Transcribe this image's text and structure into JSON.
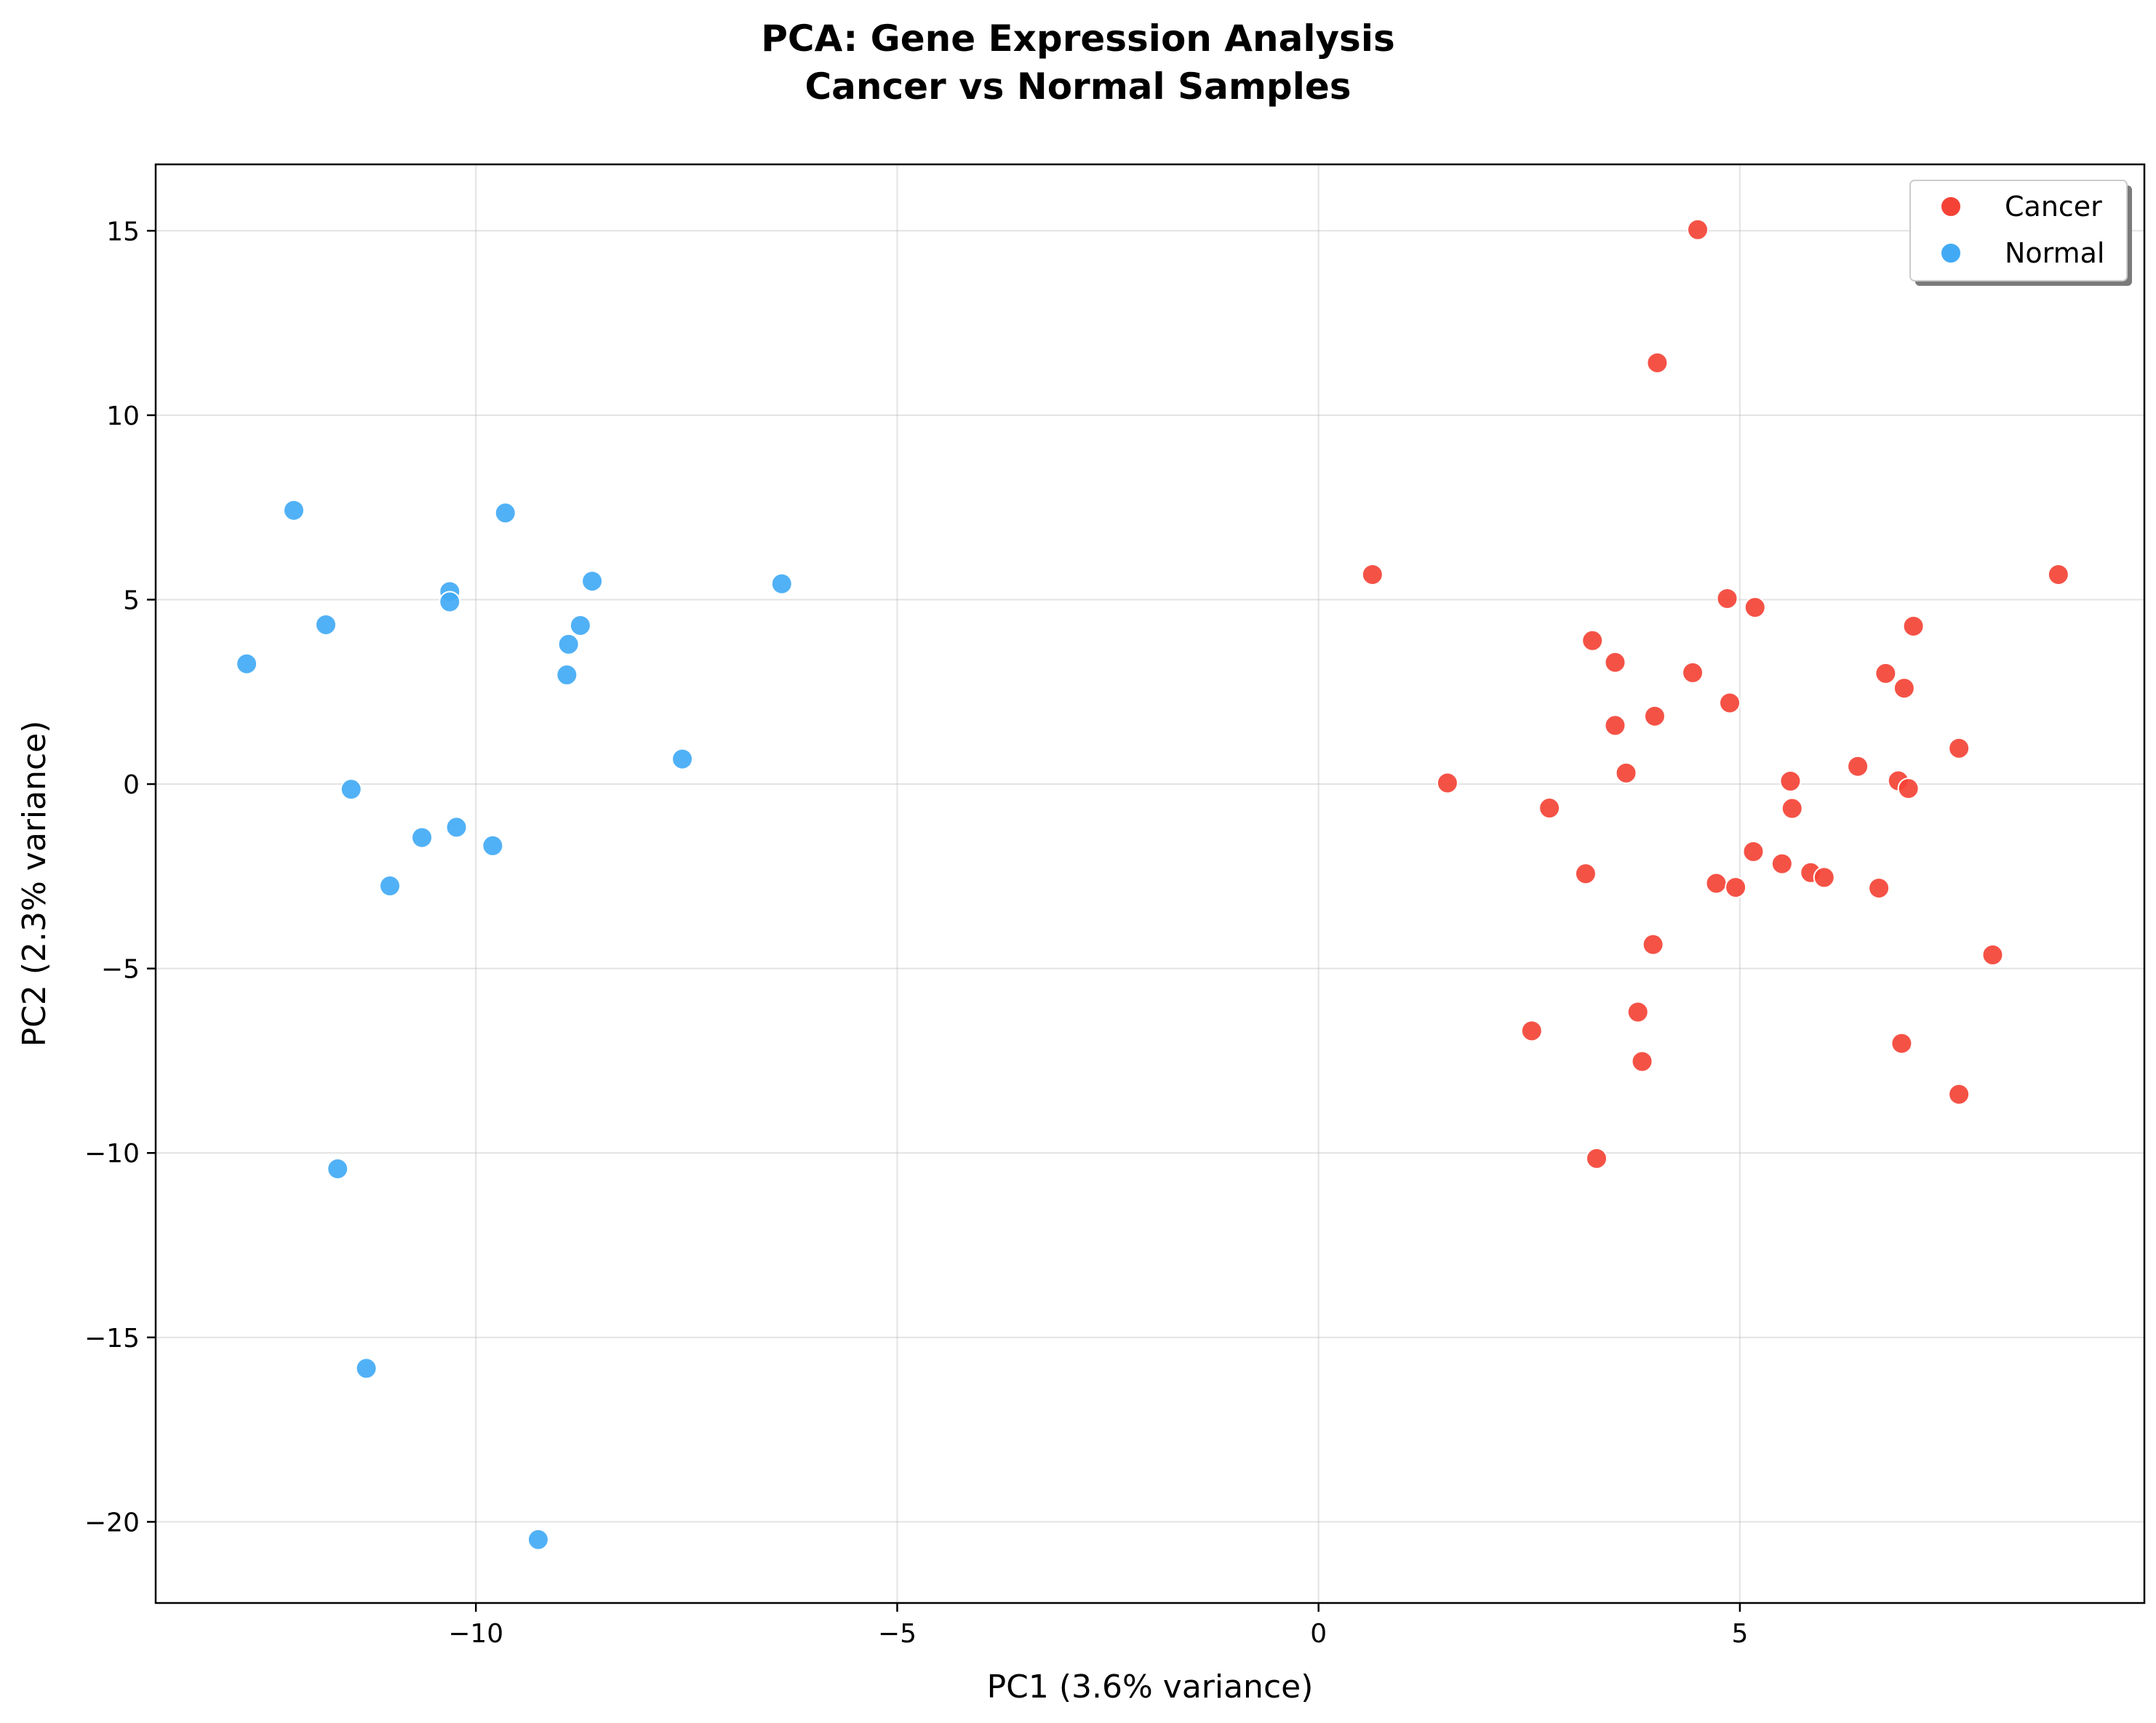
{
  "chart_data": {
    "type": "scatter",
    "title": "PCA: Gene Expression Analysis\nCancer vs Normal Samples",
    "xlabel": "PC1 (3.6% variance)",
    "ylabel": "PC2 (2.3% variance)",
    "xlim": [
      -13.8,
      9.8
    ],
    "ylim": [
      -22.2,
      16.8
    ],
    "xticks": [
      -10,
      -5,
      0,
      5
    ],
    "xtick_labels": [
      "−10",
      "−5",
      "0",
      "5"
    ],
    "yticks": [
      15,
      10,
      5,
      0,
      -5,
      -10,
      -15,
      -20
    ],
    "ytick_labels": [
      "15",
      "10",
      "5",
      "0",
      "−5",
      "−10",
      "−15",
      "−20"
    ],
    "grid": true,
    "legend_position": "top-right",
    "series": [
      {
        "name": "Cancer",
        "color": "#f44336",
        "x": [
          4.5,
          4.02,
          0.64,
          8.78,
          4.85,
          5.18,
          3.25,
          7.06,
          3.52,
          4.44,
          6.73,
          6.95,
          4.88,
          3.99,
          3.52,
          7.6,
          3.65,
          6.4,
          5.6,
          6.88,
          7.0,
          1.53,
          2.74,
          5.62,
          5.16,
          5.5,
          5.84,
          6.0,
          3.17,
          4.72,
          4.95,
          6.65,
          3.97,
          8.0,
          3.79,
          2.53,
          6.92,
          3.84,
          7.6,
          3.3
        ],
        "y": [
          15.03,
          11.42,
          5.68,
          5.68,
          5.03,
          4.79,
          3.89,
          4.28,
          3.3,
          3.02,
          3.0,
          2.6,
          2.2,
          1.84,
          1.59,
          0.97,
          0.3,
          0.48,
          0.08,
          0.09,
          -0.12,
          0.03,
          -0.65,
          -0.66,
          -1.83,
          -2.16,
          -2.4,
          -2.53,
          -2.43,
          -2.69,
          -2.8,
          -2.82,
          -4.35,
          -4.63,
          -6.18,
          -6.69,
          -7.03,
          -7.52,
          -8.41,
          -10.15
        ]
      },
      {
        "name": "Normal",
        "color": "#42aaf5",
        "x": [
          -12.16,
          -9.65,
          -10.31,
          -10.31,
          -8.62,
          -6.37,
          -11.78,
          -8.76,
          -8.9,
          -12.72,
          -8.92,
          -7.55,
          -11.48,
          -10.23,
          -10.64,
          -9.8,
          -11.02,
          -11.64,
          -11.3,
          -9.26
        ],
        "y": [
          7.42,
          7.35,
          5.22,
          4.94,
          5.5,
          5.43,
          4.32,
          4.3,
          3.79,
          3.26,
          2.96,
          0.68,
          -0.14,
          -1.17,
          -1.45,
          -1.67,
          -2.76,
          -10.43,
          -15.84,
          -20.48
        ]
      }
    ]
  }
}
